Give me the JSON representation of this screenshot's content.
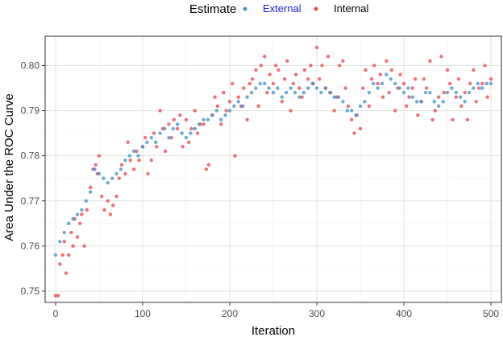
{
  "chart_data": {
    "type": "scatter",
    "xlabel": "Iteration",
    "ylabel": "Area Under the ROC Curve",
    "xlim": [
      -12,
      512
    ],
    "ylim": [
      0.7475,
      0.8065
    ],
    "xticks": [
      0,
      100,
      200,
      300,
      400,
      500
    ],
    "yticks": [
      0.75,
      0.76,
      0.77,
      0.78,
      0.79,
      0.8
    ],
    "xtick_labels": [
      "0",
      "100",
      "200",
      "300",
      "400",
      "500"
    ],
    "ytick_labels": [
      "0.75",
      "0.76",
      "0.77",
      "0.78",
      "0.79",
      "0.80"
    ],
    "grid": true,
    "legend": {
      "title": "Estimate",
      "position": "top",
      "entries": [
        {
          "label": "External",
          "color": "#3b8fc4",
          "label_color": "#1f1fd9"
        },
        {
          "label": "Internal",
          "color": "#e8414e",
          "label_color": "#000000"
        }
      ]
    },
    "series": [
      {
        "name": "External",
        "color": "#3b8fc4",
        "x": [
          0,
          5,
          10,
          15,
          20,
          25,
          30,
          35,
          40,
          45,
          50,
          55,
          60,
          65,
          70,
          75,
          80,
          85,
          90,
          95,
          100,
          105,
          110,
          115,
          120,
          125,
          130,
          135,
          140,
          145,
          150,
          155,
          160,
          165,
          170,
          175,
          180,
          185,
          190,
          195,
          200,
          205,
          210,
          215,
          220,
          225,
          230,
          235,
          240,
          245,
          250,
          255,
          260,
          265,
          270,
          275,
          280,
          285,
          290,
          295,
          300,
          305,
          310,
          315,
          320,
          325,
          330,
          335,
          340,
          345,
          350,
          355,
          360,
          365,
          370,
          375,
          380,
          385,
          390,
          395,
          400,
          405,
          410,
          415,
          420,
          425,
          430,
          435,
          440,
          445,
          450,
          455,
          460,
          465,
          470,
          475,
          480,
          485,
          490,
          495,
          500
        ],
        "y": [
          0.758,
          0.761,
          0.763,
          0.765,
          0.766,
          0.767,
          0.768,
          0.77,
          0.772,
          0.777,
          0.776,
          0.775,
          0.774,
          0.775,
          0.776,
          0.777,
          0.779,
          0.78,
          0.781,
          0.78,
          0.782,
          0.783,
          0.784,
          0.783,
          0.785,
          0.786,
          0.784,
          0.786,
          0.787,
          0.785,
          0.784,
          0.785,
          0.786,
          0.787,
          0.788,
          0.788,
          0.789,
          0.79,
          0.788,
          0.789,
          0.79,
          0.791,
          0.792,
          0.791,
          0.793,
          0.794,
          0.795,
          0.796,
          0.796,
          0.795,
          0.794,
          0.795,
          0.793,
          0.794,
          0.795,
          0.794,
          0.793,
          0.794,
          0.795,
          0.796,
          0.795,
          0.794,
          0.795,
          0.794,
          0.793,
          0.793,
          0.792,
          0.79,
          0.79,
          0.789,
          0.791,
          0.792,
          0.794,
          0.796,
          0.795,
          0.796,
          0.798,
          0.797,
          0.796,
          0.795,
          0.794,
          0.795,
          0.793,
          0.792,
          0.792,
          0.794,
          0.794,
          0.792,
          0.791,
          0.792,
          0.794,
          0.795,
          0.794,
          0.793,
          0.792,
          0.794,
          0.795,
          0.796,
          0.795,
          0.796,
          0.796
        ]
      },
      {
        "name": "Internal",
        "color": "#e8414e",
        "x": [
          0,
          3,
          5,
          8,
          10,
          12,
          15,
          18,
          20,
          22,
          25,
          28,
          30,
          33,
          36,
          40,
          43,
          46,
          48,
          50,
          53,
          56,
          60,
          63,
          66,
          70,
          73,
          76,
          80,
          83,
          86,
          90,
          93,
          96,
          100,
          103,
          106,
          110,
          113,
          116,
          120,
          123,
          126,
          130,
          133,
          136,
          140,
          143,
          146,
          150,
          153,
          156,
          160,
          163,
          166,
          170,
          173,
          176,
          180,
          183,
          186,
          190,
          193,
          196,
          200,
          203,
          206,
          210,
          213,
          216,
          220,
          223,
          226,
          230,
          233,
          236,
          240,
          243,
          246,
          250,
          253,
          256,
          260,
          263,
          266,
          270,
          273,
          276,
          280,
          283,
          286,
          290,
          293,
          296,
          300,
          303,
          306,
          310,
          313,
          316,
          320,
          323,
          326,
          330,
          333,
          336,
          340,
          343,
          346,
          350,
          353,
          356,
          360,
          363,
          366,
          370,
          373,
          376,
          380,
          383,
          386,
          390,
          393,
          396,
          400,
          403,
          406,
          410,
          413,
          416,
          420,
          423,
          426,
          430,
          433,
          436,
          440,
          443,
          446,
          450,
          453,
          456,
          460,
          463,
          466,
          470,
          473,
          476,
          480,
          483,
          486,
          490,
          493,
          496,
          500
        ],
        "y": [
          0.749,
          0.749,
          0.756,
          0.758,
          0.761,
          0.754,
          0.758,
          0.763,
          0.76,
          0.766,
          0.762,
          0.765,
          0.767,
          0.76,
          0.768,
          0.773,
          0.777,
          0.778,
          0.776,
          0.78,
          0.771,
          0.768,
          0.77,
          0.767,
          0.769,
          0.771,
          0.775,
          0.778,
          0.776,
          0.783,
          0.779,
          0.777,
          0.781,
          0.779,
          0.782,
          0.784,
          0.776,
          0.779,
          0.785,
          0.782,
          0.79,
          0.786,
          0.781,
          0.787,
          0.784,
          0.788,
          0.786,
          0.789,
          0.782,
          0.788,
          0.783,
          0.786,
          0.79,
          0.785,
          0.787,
          0.787,
          0.777,
          0.778,
          0.789,
          0.793,
          0.791,
          0.787,
          0.794,
          0.79,
          0.792,
          0.796,
          0.78,
          0.793,
          0.791,
          0.795,
          0.788,
          0.796,
          0.797,
          0.799,
          0.791,
          0.8,
          0.802,
          0.794,
          0.798,
          0.796,
          0.8,
          0.799,
          0.792,
          0.797,
          0.801,
          0.79,
          0.796,
          0.798,
          0.795,
          0.793,
          0.799,
          0.797,
          0.8,
          0.796,
          0.804,
          0.797,
          0.8,
          0.795,
          0.802,
          0.794,
          0.79,
          0.793,
          0.8,
          0.801,
          0.795,
          0.791,
          0.788,
          0.785,
          0.789,
          0.786,
          0.795,
          0.799,
          0.791,
          0.797,
          0.8,
          0.796,
          0.798,
          0.793,
          0.801,
          0.794,
          0.799,
          0.79,
          0.795,
          0.798,
          0.796,
          0.791,
          0.793,
          0.795,
          0.797,
          0.789,
          0.792,
          0.797,
          0.795,
          0.801,
          0.788,
          0.79,
          0.793,
          0.802,
          0.794,
          0.799,
          0.796,
          0.788,
          0.793,
          0.797,
          0.791,
          0.794,
          0.788,
          0.796,
          0.799,
          0.792,
          0.795,
          0.796,
          0.8,
          0.793,
          0.797
        ]
      }
    ]
  }
}
